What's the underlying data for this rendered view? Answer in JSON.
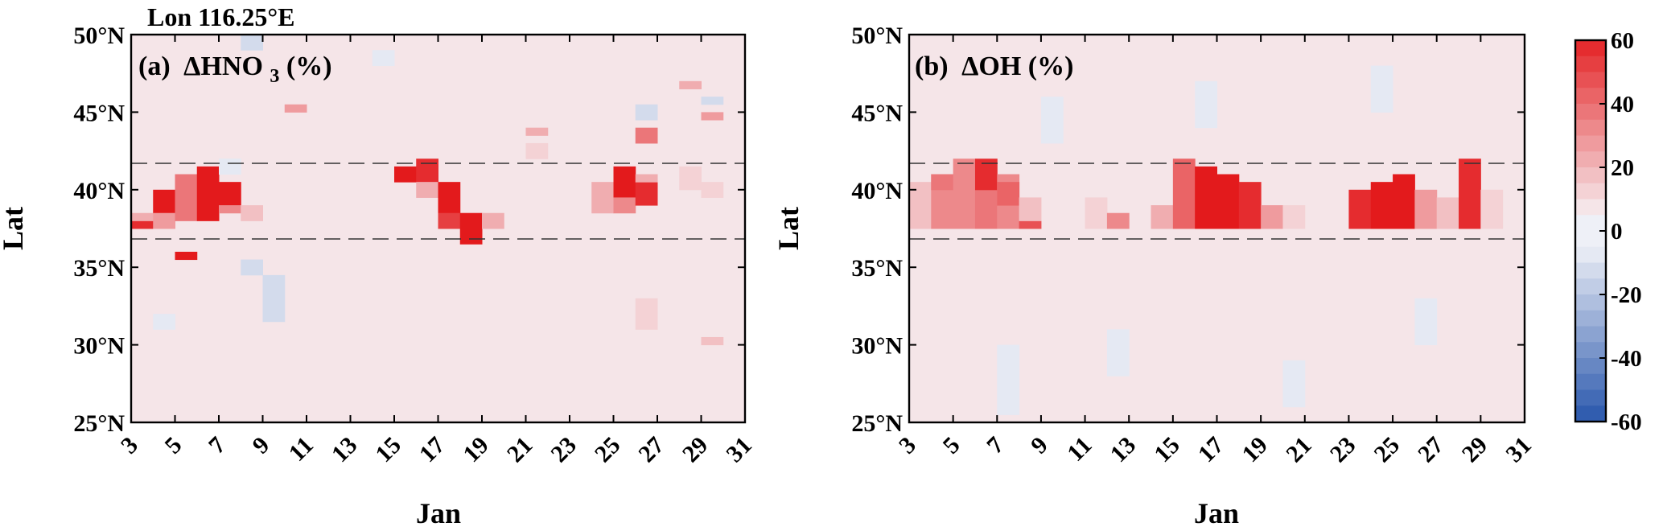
{
  "figure": {
    "title": "Lon 116.25°E"
  },
  "colors": {
    "red_strong": "#e31a1c",
    "blue_strong": "#1f4fa8",
    "near_zero": "#eef0f7",
    "frame": "#000000"
  },
  "colorbar": {
    "colormap": "blue-white-red diverging",
    "range": [
      -60,
      60
    ],
    "step": 5,
    "tick_labels": [
      "60",
      "40",
      "20",
      "0",
      "-20",
      "-40",
      "-60"
    ],
    "tick_values": [
      60,
      40,
      20,
      0,
      -20,
      -40,
      -60
    ]
  },
  "chart_data": [
    {
      "type": "heatmap",
      "panel_label": "(a)",
      "variable": "ΔHNO",
      "subscript": "3",
      "unit": "(%)",
      "xlabel": "Jan",
      "ylabel": "Lat",
      "xlim": [
        3,
        31
      ],
      "ylim": [
        25,
        50
      ],
      "x_ticks": [
        3,
        5,
        7,
        9,
        11,
        13,
        15,
        17,
        19,
        21,
        23,
        25,
        27,
        29,
        31
      ],
      "x_tick_labels": [
        "3",
        "5",
        "7",
        "9",
        "11",
        "13",
        "15",
        "17",
        "19",
        "21",
        "23",
        "25",
        "27",
        "29",
        "31"
      ],
      "y_ticks": [
        25,
        30,
        35,
        40,
        45,
        50
      ],
      "y_tick_labels": [
        "25°N",
        "30°N",
        "35°N",
        "40°N",
        "45°N",
        "50°N"
      ],
      "reference_lines_lat": [
        37,
        42
      ],
      "day_step": 1,
      "lat_step": 0.5,
      "background_value": 3,
      "cells": [
        {
          "day": 3,
          "lat": [
            37.5,
            38.0
          ],
          "value": 55
        },
        {
          "day": 3,
          "lat": [
            38.0,
            38.5
          ],
          "value": 20
        },
        {
          "day": 4,
          "lat": [
            38.5,
            40.0
          ],
          "value": 60
        },
        {
          "day": 4,
          "lat": [
            37.5,
            38.5
          ],
          "value": 25
        },
        {
          "day": 5,
          "lat": [
            38.0,
            41.0
          ],
          "value": 35
        },
        {
          "day": 5,
          "lat": [
            35.5,
            36.0
          ],
          "value": 58
        },
        {
          "day": 6,
          "lat": [
            38.0,
            41.5
          ],
          "value": 60
        },
        {
          "day": 7,
          "lat": [
            39.0,
            40.5
          ],
          "value": 60
        },
        {
          "day": 7,
          "lat": [
            38.5,
            39.0
          ],
          "value": 30
        },
        {
          "day": 8,
          "lat": [
            38.0,
            39.0
          ],
          "value": 15
        },
        {
          "day": 10,
          "lat": [
            45.0,
            45.5
          ],
          "value": 25
        },
        {
          "day": 15,
          "lat": [
            40.5,
            41.5
          ],
          "value": 60
        },
        {
          "day": 16,
          "lat": [
            40.5,
            42.0
          ],
          "value": 55
        },
        {
          "day": 16,
          "lat": [
            39.5,
            40.5
          ],
          "value": 20
        },
        {
          "day": 17,
          "lat": [
            38.5,
            40.5
          ],
          "value": 60
        },
        {
          "day": 17,
          "lat": [
            37.5,
            38.5
          ],
          "value": 50
        },
        {
          "day": 18,
          "lat": [
            36.5,
            38.5
          ],
          "value": 60
        },
        {
          "day": 19,
          "lat": [
            37.5,
            38.5
          ],
          "value": 20
        },
        {
          "day": 21,
          "lat": [
            43.5,
            44.0
          ],
          "value": 20
        },
        {
          "day": 21,
          "lat": [
            42.0,
            43.0
          ],
          "value": 12
        },
        {
          "day": 24,
          "lat": [
            38.5,
            40.5
          ],
          "value": 22
        },
        {
          "day": 25,
          "lat": [
            39.5,
            41.5
          ],
          "value": 60
        },
        {
          "day": 25,
          "lat": [
            38.5,
            39.5
          ],
          "value": 30
        },
        {
          "day": 26,
          "lat": [
            39.0,
            40.5
          ],
          "value": 55
        },
        {
          "day": 26,
          "lat": [
            43.0,
            44.0
          ],
          "value": 35
        },
        {
          "day": 26,
          "lat": [
            40.5,
            41.0
          ],
          "value": 20
        },
        {
          "day": 26,
          "lat": [
            31.0,
            33.0
          ],
          "value": 12
        },
        {
          "day": 28,
          "lat": [
            40.0,
            41.5
          ],
          "value": 12
        },
        {
          "day": 28,
          "lat": [
            46.5,
            47.0
          ],
          "value": 20
        },
        {
          "day": 29,
          "lat": [
            44.5,
            45.0
          ],
          "value": 25
        },
        {
          "day": 29,
          "lat": [
            39.5,
            40.5
          ],
          "value": 10
        },
        {
          "day": 29,
          "lat": [
            30.0,
            30.5
          ],
          "value": 15
        },
        {
          "day": 9,
          "lat": [
            31.5,
            34.5
          ],
          "value": -12
        },
        {
          "day": 8,
          "lat": [
            34.5,
            35.5
          ],
          "value": -8
        },
        {
          "day": 4,
          "lat": [
            31.0,
            32.0
          ],
          "value": -6
        },
        {
          "day": 8,
          "lat": [
            49.0,
            50.0
          ],
          "value": -8
        },
        {
          "day": 14,
          "lat": [
            48.0,
            49.0
          ],
          "value": -6
        },
        {
          "day": 26,
          "lat": [
            44.5,
            45.5
          ],
          "value": -8
        },
        {
          "day": 29,
          "lat": [
            45.5,
            46.0
          ],
          "value": -8
        },
        {
          "day": 7,
          "lat": [
            41.0,
            42.0
          ],
          "value": -4
        }
      ]
    },
    {
      "type": "heatmap",
      "panel_label": "(b)",
      "variable": "ΔOH",
      "unit": "(%)",
      "xlabel": "Jan",
      "ylabel": "Lat",
      "xlim": [
        3,
        31
      ],
      "ylim": [
        25,
        50
      ],
      "x_ticks": [
        3,
        5,
        7,
        9,
        11,
        13,
        15,
        17,
        19,
        21,
        23,
        25,
        27,
        29,
        31
      ],
      "x_tick_labels": [
        "3",
        "5",
        "7",
        "9",
        "11",
        "13",
        "15",
        "17",
        "19",
        "21",
        "23",
        "25",
        "27",
        "29",
        "31"
      ],
      "y_ticks": [
        25,
        30,
        35,
        40,
        45,
        50
      ],
      "y_tick_labels": [
        "25°N",
        "30°N",
        "35°N",
        "40°N",
        "45°N",
        "50°N"
      ],
      "reference_lines_lat": [
        37,
        42
      ],
      "day_step": 1,
      "lat_step": 0.5,
      "background_value": 3,
      "cells": [
        {
          "day": 3,
          "lat": [
            37.5,
            40.5
          ],
          "value": 15
        },
        {
          "day": 4,
          "lat": [
            37.5,
            41.0
          ],
          "value": 30
        },
        {
          "day": 4,
          "lat": [
            40.0,
            41.0
          ],
          "value": 35
        },
        {
          "day": 5,
          "lat": [
            37.5,
            42.0
          ],
          "value": 28
        },
        {
          "day": 6,
          "lat": [
            37.5,
            40.0
          ],
          "value": 35
        },
        {
          "day": 6,
          "lat": [
            40.0,
            42.0
          ],
          "value": 55
        },
        {
          "day": 7,
          "lat": [
            37.5,
            41.0
          ],
          "value": 30
        },
        {
          "day": 7,
          "lat": [
            39.0,
            40.5
          ],
          "value": 38
        },
        {
          "day": 8,
          "lat": [
            37.5,
            38.0
          ],
          "value": 45
        },
        {
          "day": 8,
          "lat": [
            38.0,
            39.5
          ],
          "value": 15
        },
        {
          "day": 11,
          "lat": [
            37.5,
            39.5
          ],
          "value": 12
        },
        {
          "day": 12,
          "lat": [
            37.5,
            38.5
          ],
          "value": 30
        },
        {
          "day": 14,
          "lat": [
            37.5,
            39.0
          ],
          "value": 20
        },
        {
          "day": 15,
          "lat": [
            37.5,
            42.0
          ],
          "value": 40
        },
        {
          "day": 16,
          "lat": [
            37.5,
            41.5
          ],
          "value": 60
        },
        {
          "day": 17,
          "lat": [
            37.5,
            41.0
          ],
          "value": 60
        },
        {
          "day": 18,
          "lat": [
            37.5,
            40.5
          ],
          "value": 55
        },
        {
          "day": 19,
          "lat": [
            37.5,
            39.0
          ],
          "value": 25
        },
        {
          "day": 20,
          "lat": [
            37.5,
            39.0
          ],
          "value": 12
        },
        {
          "day": 23,
          "lat": [
            37.5,
            40.0
          ],
          "value": 55
        },
        {
          "day": 24,
          "lat": [
            37.5,
            40.5
          ],
          "value": 58
        },
        {
          "day": 25,
          "lat": [
            37.5,
            41.0
          ],
          "value": 60
        },
        {
          "day": 26,
          "lat": [
            37.5,
            40.0
          ],
          "value": 25
        },
        {
          "day": 27,
          "lat": [
            37.5,
            39.5
          ],
          "value": 15
        },
        {
          "day": 28,
          "lat": [
            37.5,
            42.0
          ],
          "value": 55
        },
        {
          "day": 29,
          "lat": [
            37.5,
            40.0
          ],
          "value": 12
        },
        {
          "day": 7,
          "lat": [
            25.5,
            30.0
          ],
          "value": -5
        },
        {
          "day": 12,
          "lat": [
            28.0,
            31.0
          ],
          "value": -5
        },
        {
          "day": 20,
          "lat": [
            26.0,
            29.0
          ],
          "value": -5
        },
        {
          "day": 26,
          "lat": [
            30.0,
            33.0
          ],
          "value": -6
        },
        {
          "day": 16,
          "lat": [
            44.0,
            47.0
          ],
          "value": -5
        },
        {
          "day": 24,
          "lat": [
            45.0,
            48.0
          ],
          "value": -5
        },
        {
          "day": 9,
          "lat": [
            43.0,
            46.0
          ],
          "value": -5
        }
      ]
    }
  ]
}
